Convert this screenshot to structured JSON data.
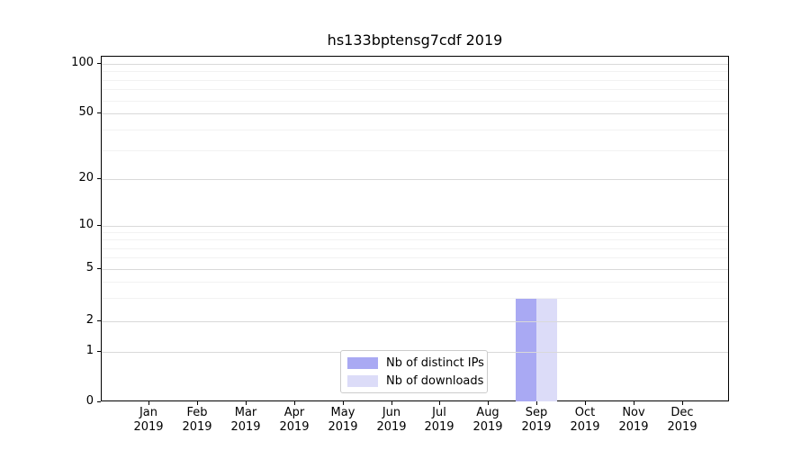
{
  "chart_data": {
    "type": "bar",
    "title": "hs133bptensg7cdf 2019",
    "y_scale": "symlog",
    "y_ticks": [
      0,
      1,
      2,
      5,
      10,
      20,
      50,
      100
    ],
    "y_minor_ticks": [
      3,
      4,
      6,
      7,
      8,
      9,
      30,
      40,
      60,
      70,
      80,
      90
    ],
    "ylim": [
      0,
      115
    ],
    "grid": true,
    "legend_position": "lower center",
    "categories": [
      {
        "month": "Jan",
        "year": "2019"
      },
      {
        "month": "Feb",
        "year": "2019"
      },
      {
        "month": "Mar",
        "year": "2019"
      },
      {
        "month": "Apr",
        "year": "2019"
      },
      {
        "month": "May",
        "year": "2019"
      },
      {
        "month": "Jun",
        "year": "2019"
      },
      {
        "month": "Jul",
        "year": "2019"
      },
      {
        "month": "Aug",
        "year": "2019"
      },
      {
        "month": "Sep",
        "year": "2019"
      },
      {
        "month": "Oct",
        "year": "2019"
      },
      {
        "month": "Nov",
        "year": "2019"
      },
      {
        "month": "Dec",
        "year": "2019"
      }
    ],
    "series": [
      {
        "name": "Nb of distinct IPs",
        "color": "#a9a9f3",
        "values": [
          0,
          0,
          0,
          0,
          0,
          0,
          0,
          0,
          3,
          0,
          0,
          0
        ]
      },
      {
        "name": "Nb of downloads",
        "color": "#dcdcf8",
        "values": [
          0,
          0,
          0,
          0,
          0,
          0,
          0,
          0,
          3,
          0,
          0,
          0
        ]
      }
    ]
  }
}
